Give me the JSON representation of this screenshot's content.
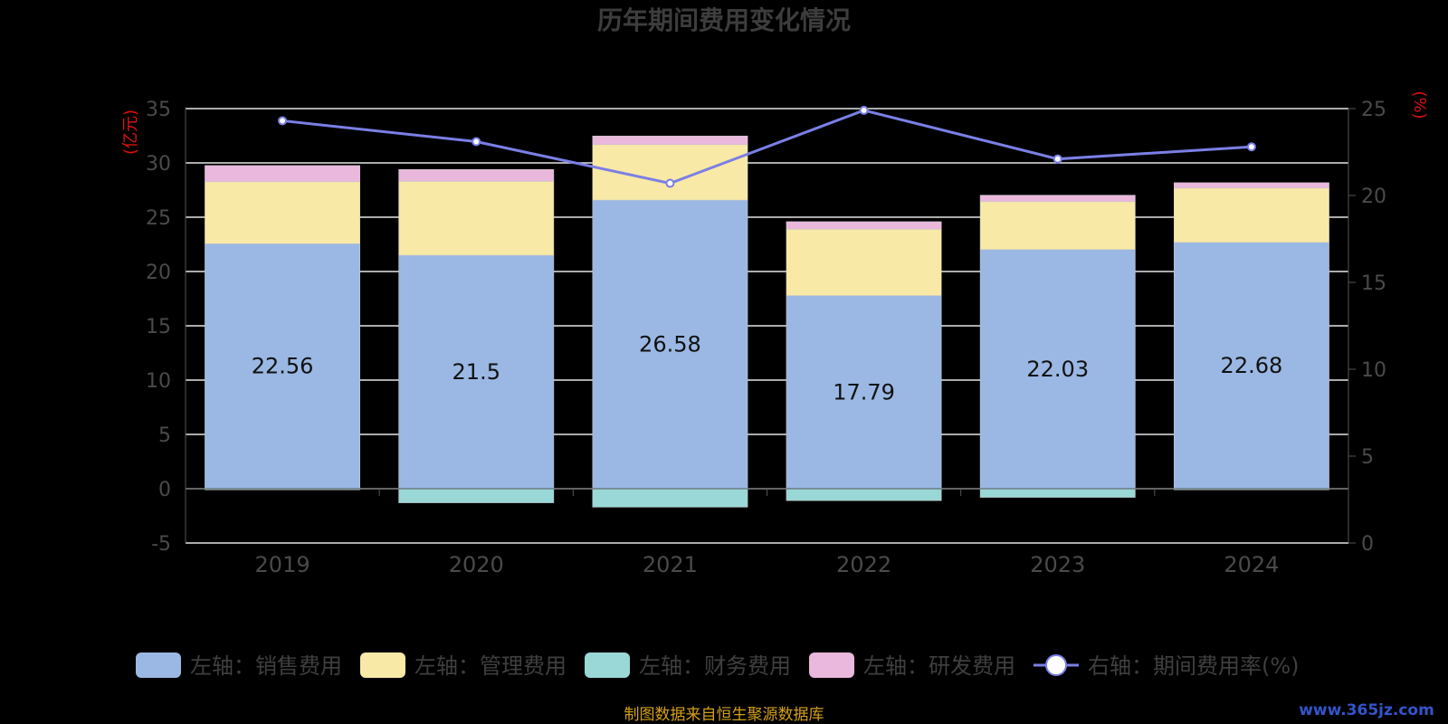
{
  "chart_data": {
    "type": "bar",
    "title": "历年期间费用变化情况",
    "categories": [
      "2019",
      "2020",
      "2021",
      "2022",
      "2023",
      "2024"
    ],
    "left_axis": {
      "unit": "(亿元)",
      "ylim": [
        -5,
        35
      ],
      "ticks": [
        -5,
        0,
        5,
        10,
        15,
        20,
        25,
        30,
        35
      ]
    },
    "right_axis": {
      "unit": "(%)",
      "ylim": [
        0,
        25
      ],
      "ticks": [
        0,
        5,
        10,
        15,
        20,
        25
      ]
    },
    "series": [
      {
        "name": "左轴：销售费用",
        "kind": "bar",
        "axis": "left",
        "color": "#9ab8e3",
        "values": [
          22.56,
          21.5,
          26.58,
          17.79,
          22.03,
          22.68
        ],
        "show_labels": true
      },
      {
        "name": "左轴：管理费用",
        "kind": "bar",
        "axis": "left",
        "color": "#f9e9a6",
        "values": [
          5.7,
          6.8,
          5.1,
          6.1,
          4.4,
          5.0
        ]
      },
      {
        "name": "左轴：财务费用",
        "kind": "bar",
        "axis": "left",
        "color": "#99d8d6",
        "values": [
          -0.1,
          -1.3,
          -1.7,
          -1.1,
          -0.8,
          -0.1
        ]
      },
      {
        "name": "左轴：研发费用",
        "kind": "bar",
        "axis": "left",
        "color": "#e9b8dc",
        "values": [
          1.5,
          1.1,
          0.8,
          0.7,
          0.6,
          0.5
        ]
      },
      {
        "name": "右轴：期间费用率(%)",
        "kind": "line",
        "axis": "right",
        "color": "#7b7fe6",
        "values": [
          24.3,
          23.1,
          20.7,
          24.9,
          22.1,
          22.8
        ]
      }
    ],
    "grid": true,
    "legend_position": "bottom"
  },
  "footer": {
    "source": "制图数据来自恒生聚源数据库",
    "watermark": "www.365jz.com"
  }
}
